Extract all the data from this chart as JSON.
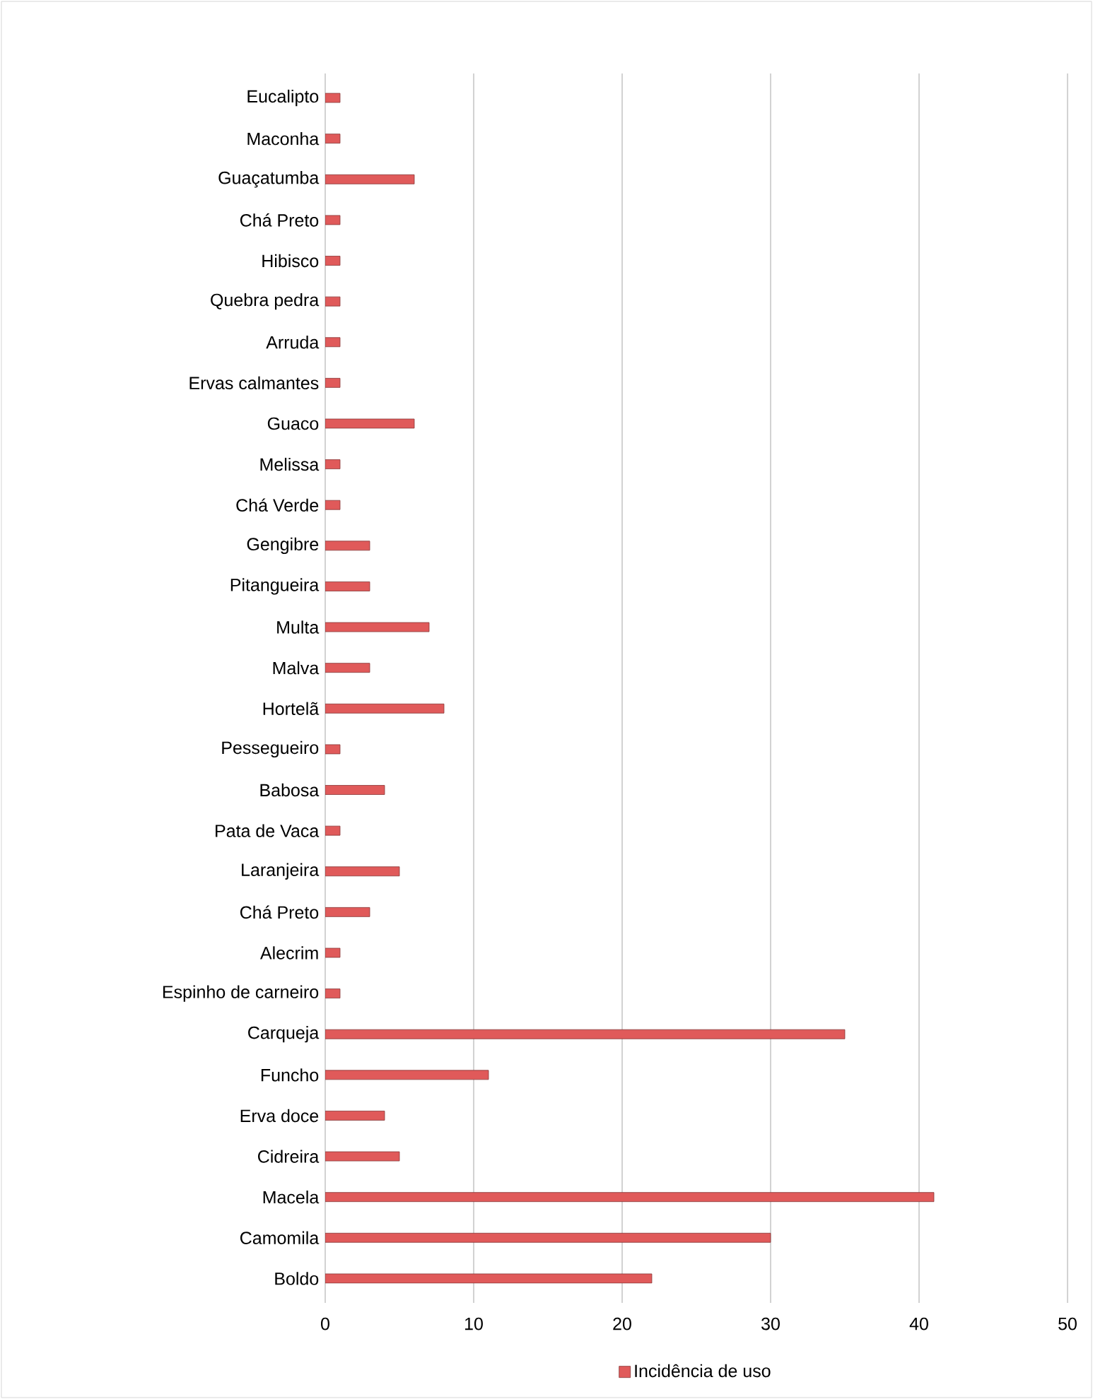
{
  "chart_data": {
    "type": "bar",
    "orientation": "horizontal",
    "categories": [
      "Eucalipto",
      "Maconha",
      "Guaçatumba",
      "Chá Preto",
      "Hibisco",
      "Quebra pedra",
      "Arruda",
      "Ervas calmantes",
      "Guaco",
      "Melissa",
      "Chá Verde",
      "Gengibre",
      "Pitangueira",
      "Multa",
      "Malva",
      "Hortelã",
      "Pessegueiro",
      "Babosa",
      "Pata de Vaca",
      "Laranjeira",
      "Chá Preto",
      "Alecrim",
      "Espinho de carneiro",
      "Carqueja",
      "Funcho",
      "Erva doce",
      "Cidreira",
      "Macela",
      "Camomila",
      "Boldo"
    ],
    "series": [
      {
        "name": "Incidência de uso",
        "color": "#e05a5a",
        "values": [
          1,
          1,
          6,
          1,
          1,
          1,
          1,
          1,
          6,
          1,
          1,
          3,
          3,
          7,
          3,
          8,
          1,
          4,
          1,
          5,
          3,
          1,
          1,
          35,
          11,
          4,
          5,
          41,
          30,
          22
        ]
      }
    ],
    "xlim": [
      0,
      50
    ],
    "xticks": [
      0,
      10,
      20,
      30,
      40,
      50
    ],
    "grid": "x",
    "legend": "bottom"
  }
}
